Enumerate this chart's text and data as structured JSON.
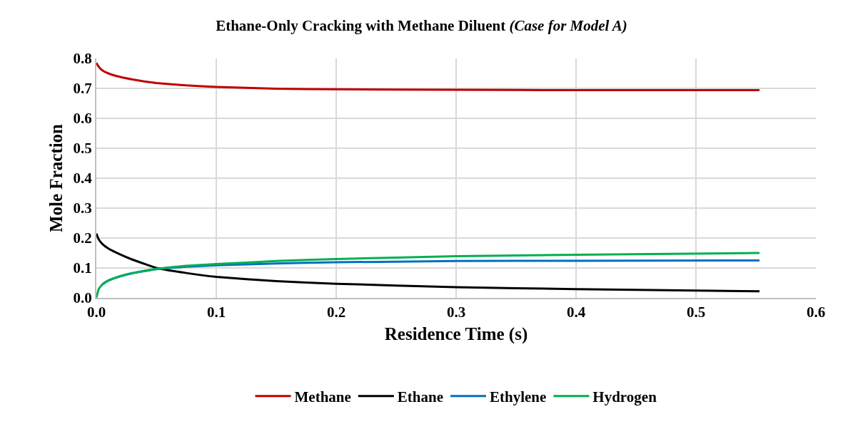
{
  "chart_data": {
    "type": "line",
    "title": "Ethane-Only Cracking with Methane Diluent (Case for Model A)",
    "xlabel": "Residence Time (s)",
    "ylabel": "Mole Fraction",
    "x": [
      0,
      0.002,
      0.005,
      0.01,
      0.02,
      0.03,
      0.05,
      0.075,
      0.1,
      0.15,
      0.2,
      0.3,
      0.4,
      0.553
    ],
    "series": [
      {
        "name": "Methane",
        "color": "#c00000",
        "values": [
          0.785,
          0.772,
          0.76,
          0.75,
          0.738,
          0.73,
          0.718,
          0.71,
          0.705,
          0.699,
          0.697,
          0.695,
          0.694,
          0.694
        ]
      },
      {
        "name": "Ethane",
        "color": "#000000",
        "values": [
          0.215,
          0.195,
          0.18,
          0.165,
          0.145,
          0.128,
          0.1,
          0.083,
          0.07,
          0.056,
          0.047,
          0.036,
          0.029,
          0.022
        ]
      },
      {
        "name": "Ethylene",
        "color": "#0070c0",
        "values": [
          null,
          null,
          0.045,
          0.058,
          0.072,
          0.082,
          0.096,
          0.104,
          0.109,
          0.115,
          0.119,
          0.123,
          0.124,
          0.125
        ]
      },
      {
        "name": "Hydrogen",
        "color": "#00b050",
        "values": [
          0,
          0.03,
          0.045,
          0.058,
          0.073,
          0.083,
          0.097,
          0.107,
          0.113,
          0.123,
          0.13,
          0.139,
          0.144,
          0.15
        ]
      }
    ],
    "xlim": [
      0,
      0.6
    ],
    "xticks": [
      {
        "value": 0,
        "label": "0.0"
      },
      0.1,
      0.2,
      0.3,
      0.4,
      0.5,
      0.6
    ],
    "ylim": [
      0,
      0.8
    ],
    "yticks": [
      {
        "value": 0,
        "label": "0.0"
      },
      0.1,
      0.2,
      0.3,
      0.4,
      0.5,
      0.6,
      0.7,
      0.8
    ],
    "grid": true,
    "legend": "bottom",
    "marker": "none",
    "line_style": "solid"
  }
}
